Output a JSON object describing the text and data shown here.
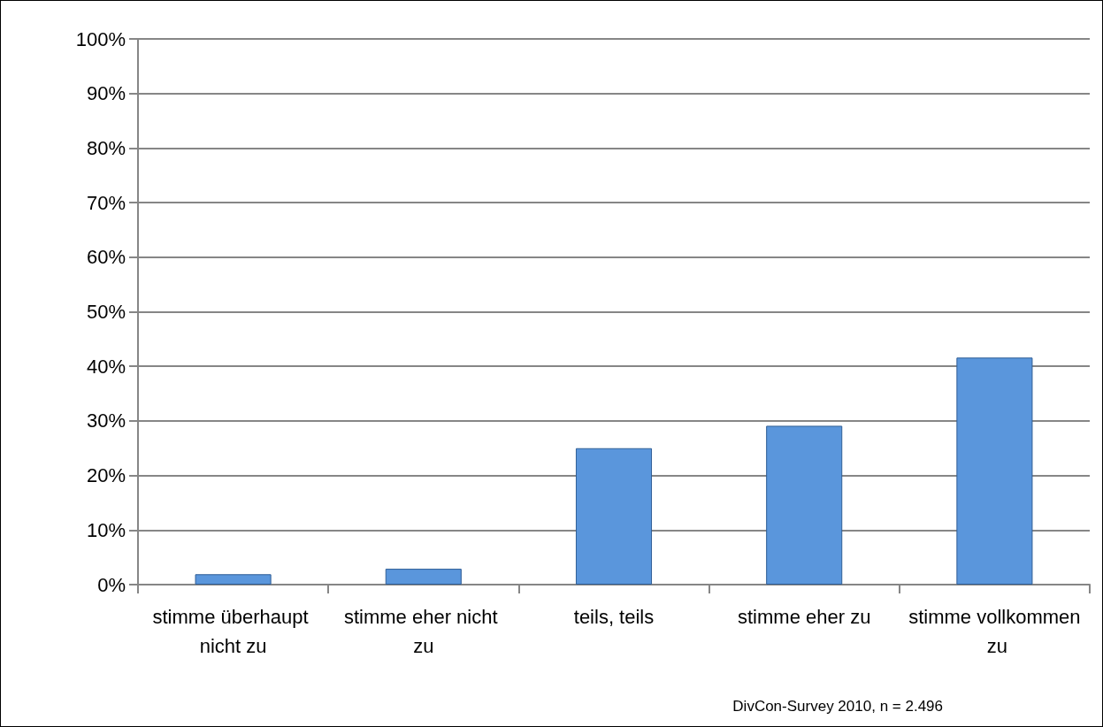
{
  "chart_data": {
    "type": "bar",
    "categories": [
      "stimme überhaupt nicht zu",
      "stimme eher nicht zu",
      "teils, teils",
      "stimme eher zu",
      "stimme vollkommen zu"
    ],
    "values": [
      1.9,
      2.9,
      25.0,
      29.1,
      41.6
    ],
    "color": "#5a96dc",
    "ylim": [
      0,
      100
    ],
    "yticks": [
      {
        "value": 0,
        "label": "0%"
      },
      {
        "value": 10,
        "label": "10%"
      },
      {
        "value": 20,
        "label": "20%"
      },
      {
        "value": 30,
        "label": "30%"
      },
      {
        "value": 40,
        "label": "40%"
      },
      {
        "value": 50,
        "label": "50%"
      },
      {
        "value": 60,
        "label": "60%"
      },
      {
        "value": 70,
        "label": "70%"
      },
      {
        "value": 80,
        "label": "80%"
      },
      {
        "value": 90,
        "label": "90%"
      },
      {
        "value": 100,
        "label": "100%"
      }
    ],
    "grid": "y",
    "annotations": [
      "DivCon-Survey 2010, n = 2.496"
    ]
  }
}
